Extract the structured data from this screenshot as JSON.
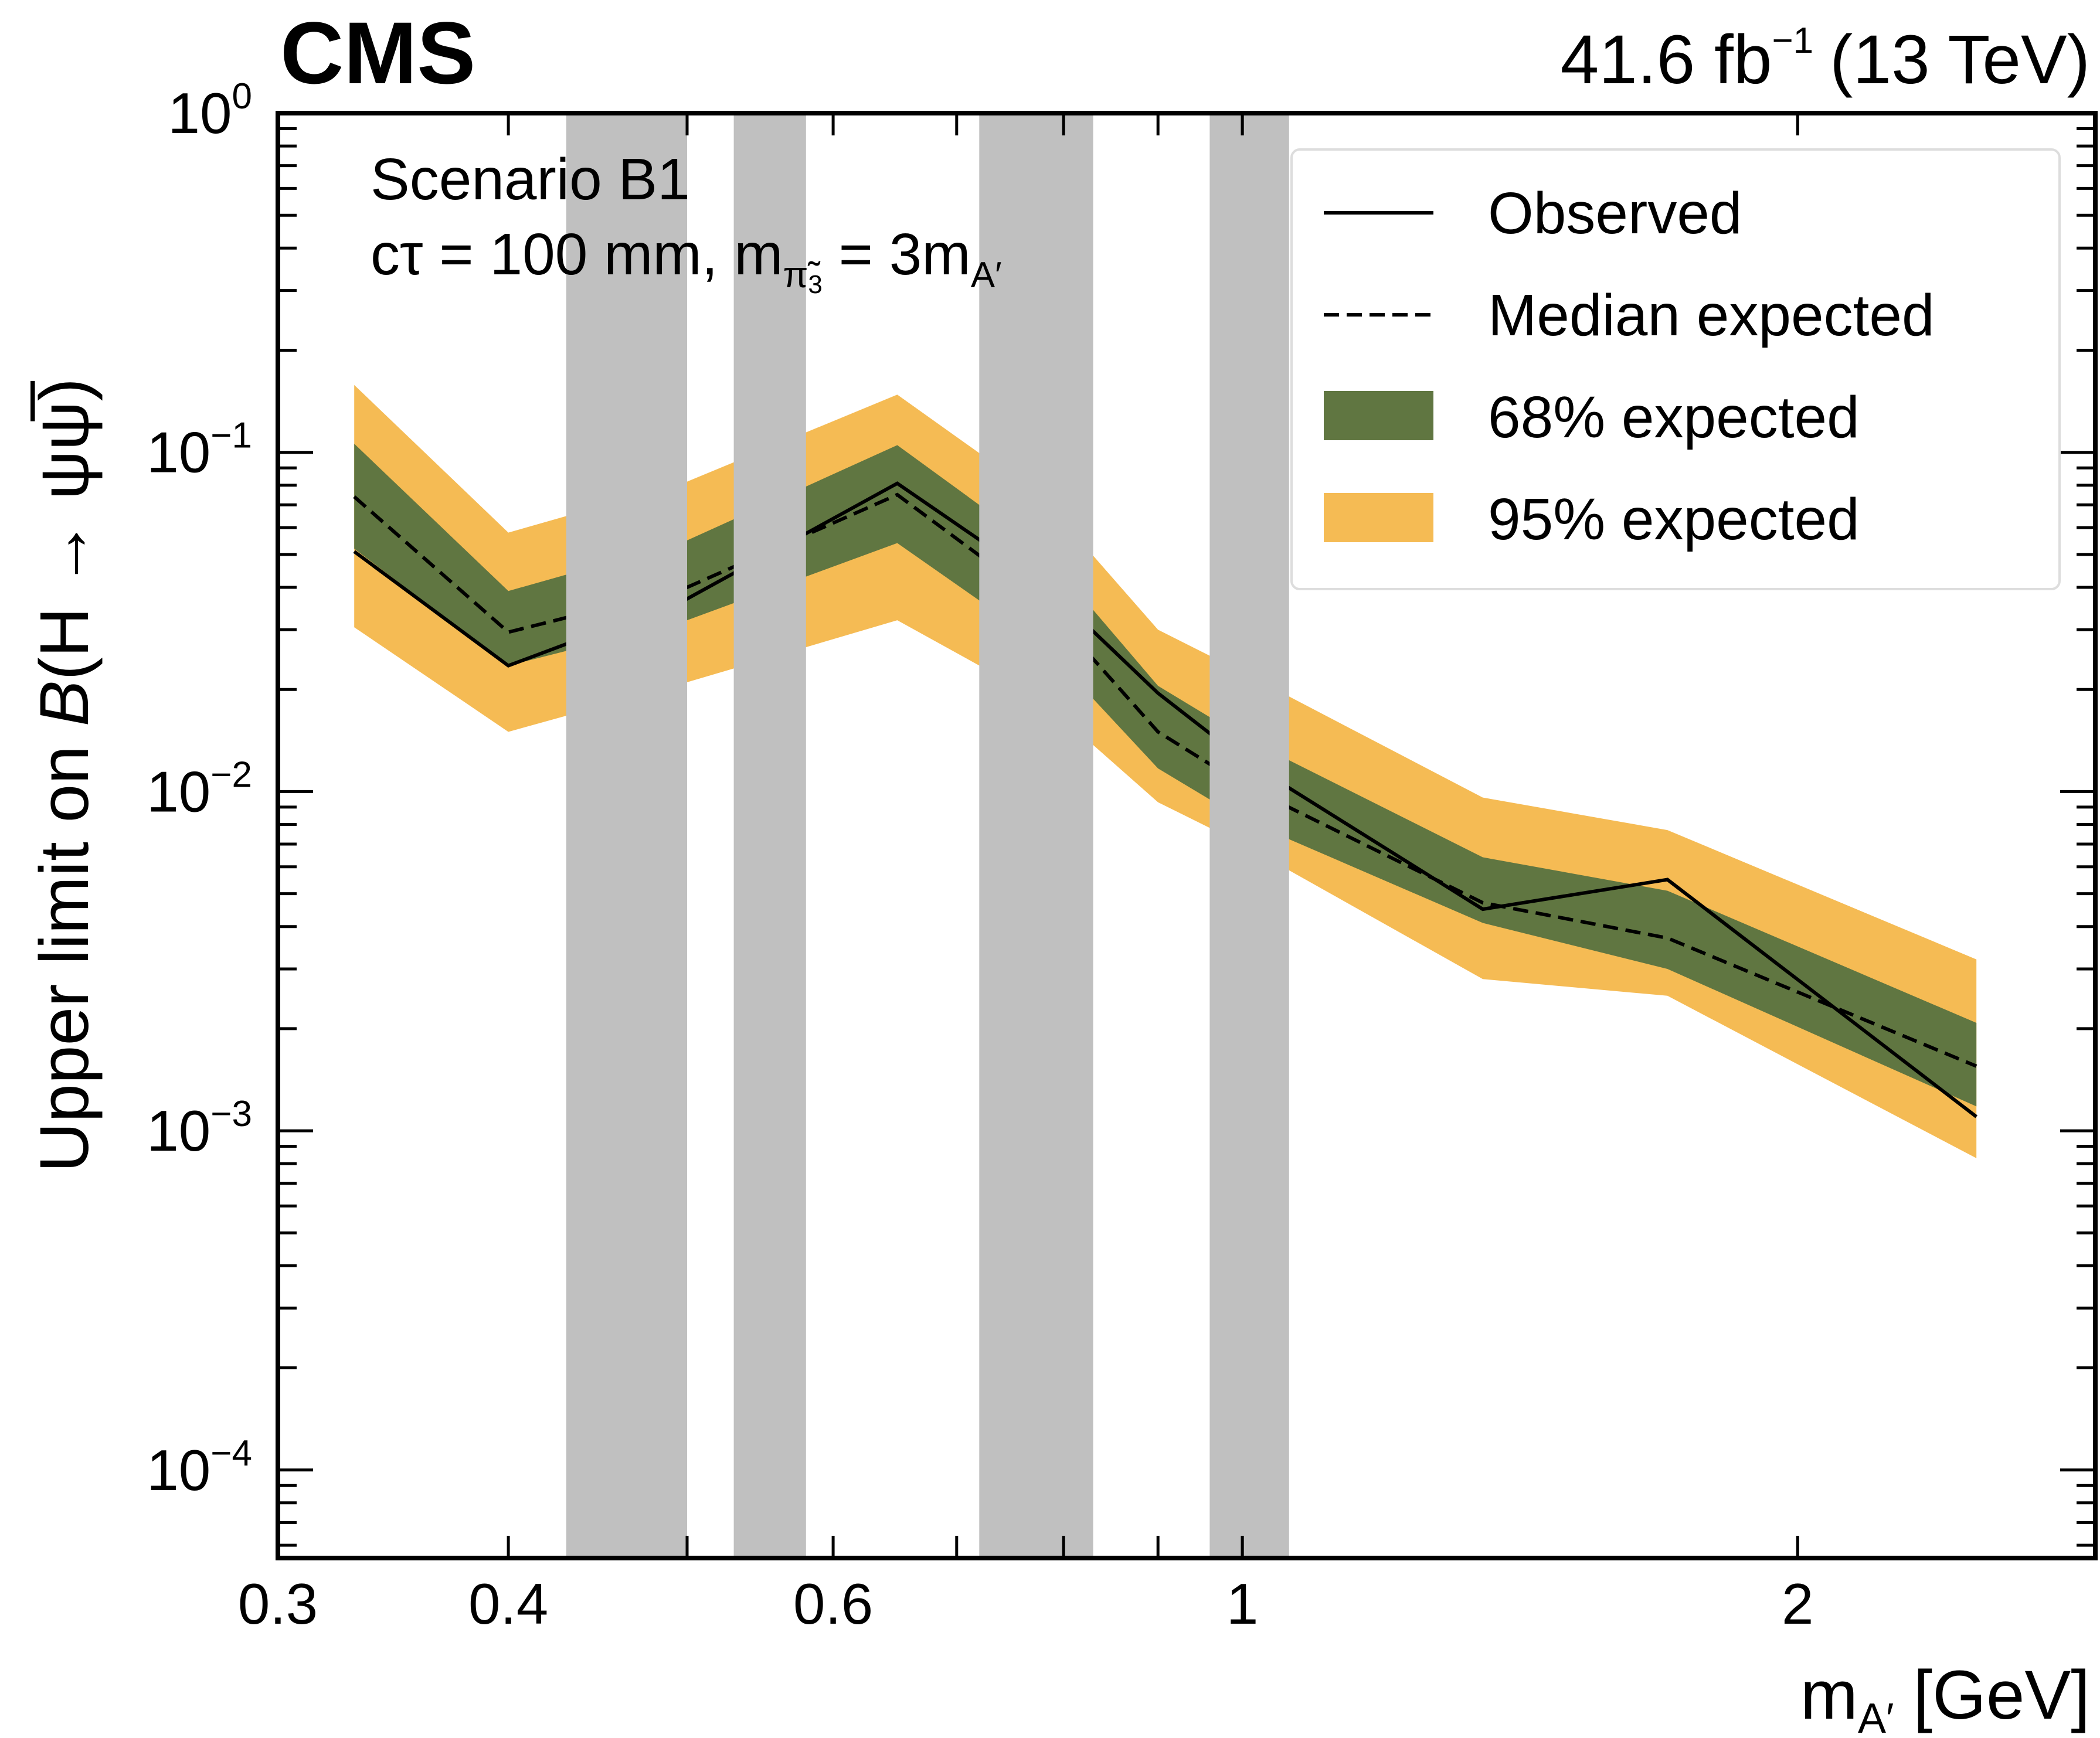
{
  "chart_data": {
    "type": "line",
    "experiment": "CMS",
    "luminosity": {
      "value": "41.6 fb",
      "exponent": "−1",
      "energy": "(13 TeV)"
    },
    "annotation": {
      "scenario": "Scenario B1",
      "ctau": "cτ = 100 mm, m",
      "pi_label": "π̃",
      "pi_index": "3",
      "mass_relation": " = 3m",
      "mass_sub": "A′"
    },
    "xlabel": {
      "main": "m",
      "sub": "A′",
      "unit": " [GeV]"
    },
    "ylabel": {
      "prefix": "Upper limit on ",
      "B": "B",
      "process": "(H → ψψ",
      "bar_psi": "̅",
      "close": ")"
    },
    "x_scale": "log",
    "y_scale": "log",
    "xlim": [
      0.3,
      2.9
    ],
    "ylim": [
      5.5e-05,
      1.0
    ],
    "x_ticks": [
      {
        "value": 0.3,
        "label": "0.3"
      },
      {
        "value": 0.4,
        "label": "0.4"
      },
      {
        "value": 0.6,
        "label": "0.6"
      },
      {
        "value": 1,
        "label": "1"
      },
      {
        "value": 2,
        "label": "2"
      }
    ],
    "y_ticks": [
      {
        "value": 1,
        "base": "10",
        "exp": "0"
      },
      {
        "value": 0.1,
        "base": "10",
        "exp": "−1"
      },
      {
        "value": 0.01,
        "base": "10",
        "exp": "−2"
      },
      {
        "value": 0.001,
        "base": "10",
        "exp": "−3"
      },
      {
        "value": 0.0001,
        "base": "10",
        "exp": "−4"
      }
    ],
    "excluded_mass_windows": [
      {
        "from": 0.43,
        "to": 0.5
      },
      {
        "from": 0.53,
        "to": 0.58
      },
      {
        "from": 0.72,
        "to": 0.83
      },
      {
        "from": 0.96,
        "to": 1.06
      }
    ],
    "band_colors": {
      "band95": "#F5BB54",
      "band68": "#607641",
      "excluded": "#C0C0C0"
    },
    "x": [
      0.33,
      0.4,
      0.5,
      0.65,
      0.78,
      0.9,
      1.0,
      1.35,
      1.7,
      2.5
    ],
    "series": [
      {
        "name": "Observed",
        "style": "solid",
        "values": [
          0.051,
          0.0235,
          0.037,
          0.081,
          0.041,
          0.0195,
          0.0125,
          0.0045,
          0.0055,
          0.0011
        ]
      },
      {
        "name": "Median expected",
        "style": "dashed",
        "values": [
          0.074,
          0.0295,
          0.04,
          0.075,
          0.036,
          0.015,
          0.0105,
          0.0047,
          0.0037,
          0.00155
        ]
      },
      {
        "name": "68% expected",
        "style": "band",
        "lower": [
          0.052,
          0.0235,
          0.032,
          0.054,
          0.027,
          0.0117,
          0.0083,
          0.0041,
          0.003,
          0.00118
        ],
        "upper": [
          0.106,
          0.039,
          0.055,
          0.105,
          0.051,
          0.0205,
          0.0145,
          0.0064,
          0.0051,
          0.00208
        ]
      },
      {
        "name": "95% expected",
        "style": "band",
        "lower": [
          0.0305,
          0.015,
          0.021,
          0.032,
          0.0185,
          0.0093,
          0.007,
          0.0028,
          0.0025,
          0.00083
        ],
        "upper": [
          0.158,
          0.058,
          0.082,
          0.148,
          0.073,
          0.03,
          0.0225,
          0.0096,
          0.0077,
          0.0032
        ]
      }
    ],
    "legend": {
      "position": "top-right",
      "entries": [
        {
          "label": "Observed"
        },
        {
          "label": "Median expected"
        },
        {
          "label": "68% expected"
        },
        {
          "label": "95% expected"
        }
      ]
    }
  }
}
